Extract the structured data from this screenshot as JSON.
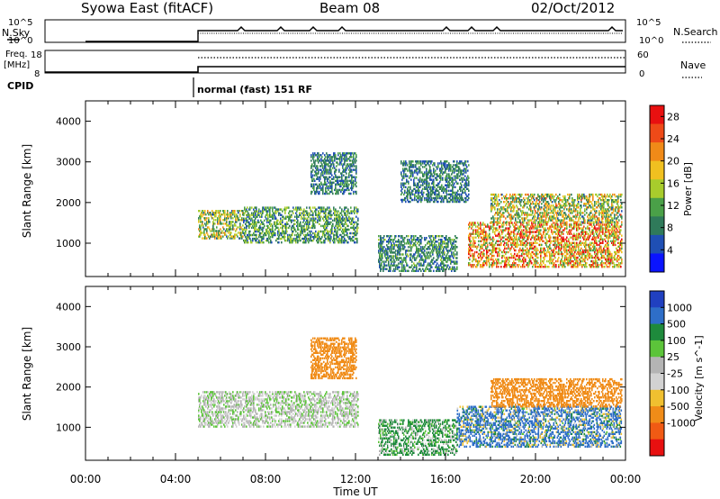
{
  "header": {
    "station": "Syowa East (fitACF)",
    "beam": "Beam 08",
    "date": "02/Oct/2012"
  },
  "params": {
    "nsky_label": "N.Sky",
    "nsearch_label": "N.Search",
    "freq_label_1": "Freq.",
    "freq_label_2": "[MHz]",
    "nave_label": "Nave",
    "cpid_label": "CPID",
    "cpid_value": "normal (fast) 151 RF",
    "nsky_ticks": [
      "10^5",
      "10^0"
    ],
    "nsearch_ticks": [
      "10^5",
      "10^0"
    ],
    "freq_ticks": [
      "18",
      "8"
    ],
    "nave_ticks": [
      "60",
      "0"
    ]
  },
  "colors": {
    "power": [
      "#0a14ff",
      "#1f4fb4",
      "#2f7a5a",
      "#4aa048",
      "#a8cc2c",
      "#f0c020",
      "#f08a18",
      "#ee4a18",
      "#e81010"
    ],
    "velocity": [
      "#2040c0",
      "#2e6ec8",
      "#1e8a3c",
      "#5cc43a",
      "#b4b4b4",
      "#d2d2d2",
      "#f0c030",
      "#f08c18",
      "#f05a14",
      "#e81010"
    ]
  },
  "chart_data": [
    {
      "type": "heatmap",
      "name": "power",
      "xlabel": "",
      "ylabel": "Slant Range [km]",
      "x_ticks": [
        "00:00",
        "04:00",
        "08:00",
        "12:00",
        "16:00",
        "20:00",
        "00:00"
      ],
      "xlim": [
        0,
        24
      ],
      "ylim": [
        180,
        4500
      ],
      "y_ticks": [
        1000,
        2000,
        3000,
        4000
      ],
      "colorbar": {
        "label": "Power [dB]",
        "ticks": [
          "4",
          "8",
          "12",
          "16",
          "20",
          "24",
          "28"
        ],
        "range": [
          0,
          30
        ]
      },
      "observation_start_ut": 5.0,
      "data_gap_ut": [
        12.1,
        13.0
      ],
      "echo_regions": [
        {
          "t_start": 5.0,
          "t_end": 7.0,
          "range_km": [
            1100,
            1800
          ],
          "power_db": [
            6,
            22
          ]
        },
        {
          "t_start": 7.0,
          "t_end": 12.1,
          "range_km": [
            1000,
            1900
          ],
          "power_db": [
            5,
            16
          ]
        },
        {
          "t_start": 10.0,
          "t_end": 12.0,
          "range_km": [
            2200,
            3200
          ],
          "power_db": [
            4,
            12
          ]
        },
        {
          "t_start": 13.0,
          "t_end": 16.5,
          "range_km": [
            300,
            1200
          ],
          "power_db": [
            4,
            14
          ]
        },
        {
          "t_start": 14.0,
          "t_end": 17.0,
          "range_km": [
            2000,
            3000
          ],
          "power_db": [
            4,
            12
          ]
        },
        {
          "t_start": 17.0,
          "t_end": 23.8,
          "range_km": [
            400,
            1500
          ],
          "power_db": [
            10,
            30
          ]
        },
        {
          "t_start": 18.0,
          "t_end": 23.8,
          "range_km": [
            1500,
            2200
          ],
          "power_db": [
            6,
            24
          ]
        }
      ]
    },
    {
      "type": "heatmap",
      "name": "velocity",
      "xlabel": "Time UT",
      "ylabel": "Slant Range [km]",
      "x_ticks": [
        "00:00",
        "04:00",
        "08:00",
        "12:00",
        "16:00",
        "20:00",
        "00:00"
      ],
      "xlim": [
        0,
        24
      ],
      "ylim": [
        180,
        4500
      ],
      "y_ticks": [
        1000,
        2000,
        3000,
        4000
      ],
      "colorbar": {
        "label": "Velocity [m s^-1]",
        "ticks": [
          "1000",
          "500",
          "100",
          "25",
          "-25",
          "-100",
          "-500",
          "-1000"
        ],
        "range": [
          1000,
          -1000
        ]
      },
      "observation_start_ut": 5.0,
      "data_gap_ut": [
        12.1,
        13.0
      ],
      "echo_regions": [
        {
          "t_start": 5.0,
          "t_end": 12.1,
          "range_km": [
            1000,
            1900
          ],
          "velocity_ms": [
            -25,
            25
          ]
        },
        {
          "t_start": 10.0,
          "t_end": 12.0,
          "range_km": [
            2200,
            3200
          ],
          "velocity_ms": [
            -500,
            -100
          ]
        },
        {
          "t_start": 13.0,
          "t_end": 16.5,
          "range_km": [
            300,
            1200
          ],
          "velocity_ms": [
            -25,
            100
          ]
        },
        {
          "t_start": 16.5,
          "t_end": 23.8,
          "range_km": [
            500,
            1500
          ],
          "velocity_ms": [
            -100,
            500
          ]
        },
        {
          "t_start": 18.0,
          "t_end": 23.8,
          "range_km": [
            1500,
            2200
          ],
          "velocity_ms": [
            -500,
            -100
          ]
        }
      ]
    }
  ]
}
